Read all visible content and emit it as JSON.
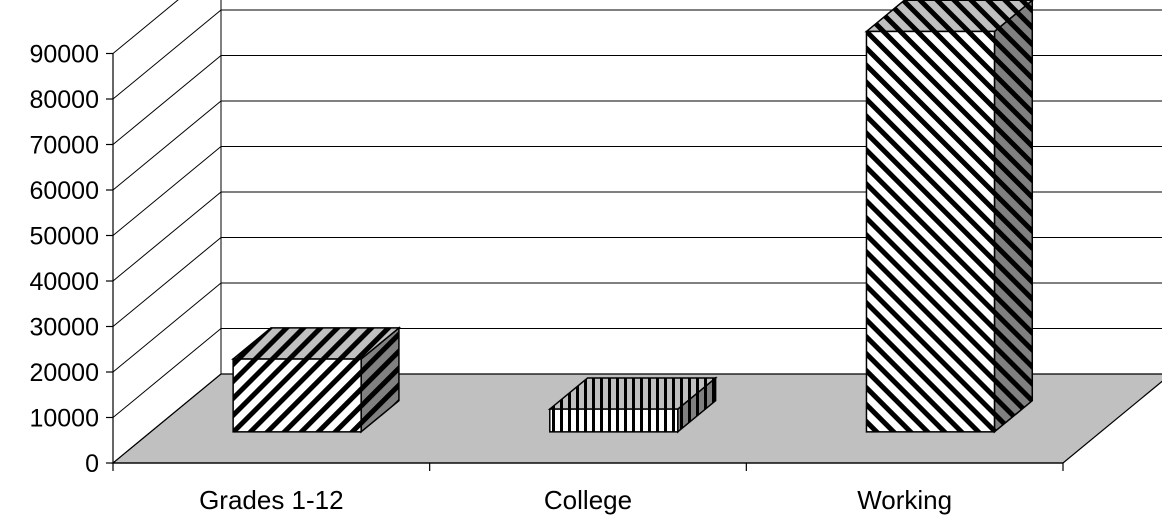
{
  "chart_data": {
    "type": "bar",
    "style": "3d-column",
    "categories": [
      "Grades 1-12",
      "College",
      "Working"
    ],
    "values": [
      16000,
      5000,
      88000
    ],
    "ylim": [
      0,
      90000
    ],
    "yticks": [
      "0",
      "10000",
      "20000",
      "30000",
      "40000",
      "50000",
      "60000",
      "70000",
      "80000",
      "90000"
    ],
    "title": "",
    "xlabel": "",
    "ylabel": "",
    "grid": true,
    "legend": "none",
    "colors": {
      "floor": "#c0c0c0",
      "bar_front": "#ffffff",
      "bar_side": "#808080",
      "bar_top": "#c0c0c0",
      "outline": "#000000"
    },
    "patterns": [
      "diagonal-up",
      "vertical",
      "diagonal-down"
    ]
  }
}
